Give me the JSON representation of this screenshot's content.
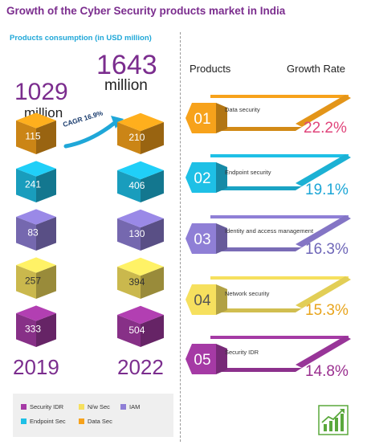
{
  "header": {
    "title": "Growth of the Cyber Security products market in India",
    "subtitle": "Products consumption (in USD million)"
  },
  "left_panel": {
    "total_2019": "1029",
    "total_2022": "1643",
    "unit": "million",
    "cagr_label": "CAGR 16.9%",
    "year_2019": "2019",
    "year_2022": "2022"
  },
  "legend": [
    {
      "label": "Security IDR",
      "color": "#a53aa5"
    },
    {
      "label": "N/w Sec",
      "color": "#f6e05e"
    },
    {
      "label": "IAM",
      "color": "#8f7fd6"
    },
    {
      "label": "Endpoint Sec",
      "color": "#1ec0e6"
    },
    {
      "label": "Data Sec",
      "color": "#f7a21b"
    }
  ],
  "right_panel": {
    "products_header": "Products",
    "growth_header": "Growth Rate"
  },
  "chart_data": [
    {
      "type": "bar",
      "title": "Products consumption (in USD million)",
      "stacked": true,
      "categories": [
        "2019",
        "2022"
      ],
      "totals": [
        1029,
        1643
      ],
      "series": [
        {
          "name": "Security IDR",
          "color": "#a53aa5",
          "values": [
            333,
            504
          ]
        },
        {
          "name": "N/w Sec",
          "color": "#f6e05e",
          "values": [
            257,
            394
          ]
        },
        {
          "name": "IAM",
          "color": "#8f7fd6",
          "values": [
            83,
            130
          ]
        },
        {
          "name": "Endpoint Sec",
          "color": "#1ec0e6",
          "values": [
            241,
            406
          ]
        },
        {
          "name": "Data Sec",
          "color": "#f7a21b",
          "values": [
            115,
            210
          ]
        }
      ],
      "annotation": "CAGR 16.9%"
    },
    {
      "type": "table",
      "columns": [
        "Products",
        "Growth Rate"
      ],
      "rows": [
        {
          "rank": "01",
          "product": "Data security",
          "rate": "22.2%",
          "color": "#f7a21b"
        },
        {
          "rank": "02",
          "product": "Endpoint security",
          "rate": "19.1%",
          "color": "#1ec0e6"
        },
        {
          "rank": "03",
          "product": "Identity and access management",
          "rate": "16.3%",
          "color": "#8f7fd6"
        },
        {
          "rank": "04",
          "product": "Network security",
          "rate": "15.3%",
          "color": "#f6e05e"
        },
        {
          "rank": "05",
          "product": "Security IDR",
          "rate": "14.8%",
          "color": "#a53aa5"
        }
      ]
    }
  ]
}
